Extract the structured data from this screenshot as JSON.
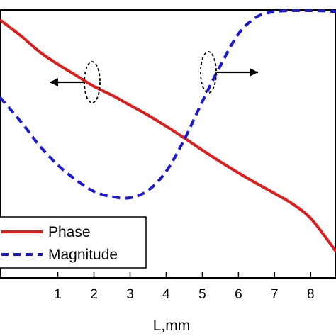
{
  "chart_data": {
    "type": "line",
    "xlabel": "L,mm",
    "ylabel": "",
    "xlim": [
      -0.6,
      8.7
    ],
    "x_ticks": [
      "1",
      "2",
      "3",
      "4",
      "5",
      "6",
      "7",
      "8"
    ],
    "x_tick_values": [
      1,
      2,
      3,
      4,
      5,
      6,
      7,
      8
    ],
    "grid": false,
    "legend_position": "bottom-left",
    "series": [
      {
        "name": "Phase",
        "style": "solid",
        "color": "#e01b1b",
        "x": [
          -0.6,
          0.0,
          0.5,
          1.0,
          1.5,
          2.0,
          2.5,
          3.0,
          3.5,
          4.0,
          4.5,
          5.0,
          5.5,
          6.0,
          6.5,
          7.0,
          7.5,
          8.0,
          8.5,
          8.7
        ],
        "y": [
          26.0,
          23.0,
          20.2,
          18.0,
          16.0,
          14.0,
          12.4,
          10.6,
          8.8,
          6.8,
          4.7,
          2.5,
          0.4,
          -1.6,
          -3.5,
          -5.3,
          -7.2,
          -9.8,
          -14.0,
          -15.8
        ]
      },
      {
        "name": "Magnitude",
        "style": "dashed",
        "color": "#1a1ad6",
        "x": [
          -0.6,
          0.0,
          0.5,
          1.0,
          1.5,
          2.0,
          2.5,
          3.0,
          3.5,
          4.0,
          4.5,
          5.0,
          5.5,
          6.0,
          6.5,
          7.0,
          7.5,
          8.0,
          8.5,
          8.7
        ],
        "y": [
          0.56,
          0.44,
          0.33,
          0.24,
          0.17,
          0.115,
          0.09,
          0.085,
          0.12,
          0.21,
          0.36,
          0.54,
          0.71,
          0.86,
          0.94,
          0.965,
          0.97,
          0.97,
          0.968,
          0.965
        ]
      }
    ],
    "annotations": [
      {
        "kind": "ellipse-with-arrow",
        "series": "Phase",
        "arrow_direction": "left"
      },
      {
        "kind": "ellipse-with-arrow",
        "series": "Magnitude",
        "arrow_direction": "right"
      }
    ]
  }
}
